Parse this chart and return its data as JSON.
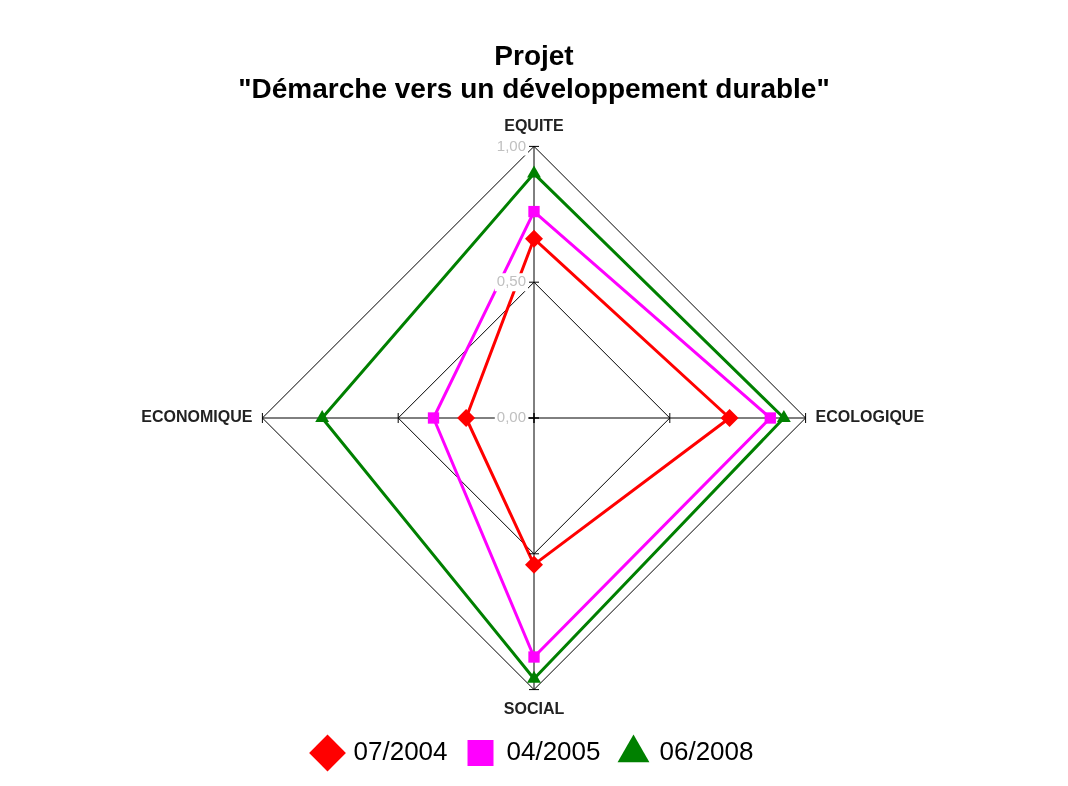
{
  "chart_data": {
    "type": "radar",
    "title": "Projet\n\"Démarche vers un développement durable\"",
    "categories": [
      "EQUITE",
      "ECOLOGIQUE",
      "SOCIAL",
      "ECONOMIQUE"
    ],
    "series": [
      {
        "name": "07/2004",
        "color": "#ff0000",
        "marker": "diamond",
        "values": [
          0.66,
          0.72,
          0.54,
          0.25
        ]
      },
      {
        "name": "04/2005",
        "color": "#ff00ff",
        "marker": "square",
        "values": [
          0.76,
          0.87,
          0.88,
          0.37
        ]
      },
      {
        "name": "06/2008",
        "color": "#008000",
        "marker": "triangle",
        "values": [
          0.9,
          0.92,
          0.96,
          0.78
        ]
      }
    ],
    "ylim": [
      0,
      1
    ],
    "yticks": [
      {
        "value": 0,
        "label": "0,00"
      },
      {
        "value": 0.5,
        "label": "0,50"
      },
      {
        "value": 1,
        "label": "1,00"
      }
    ],
    "legend": "bottom"
  }
}
